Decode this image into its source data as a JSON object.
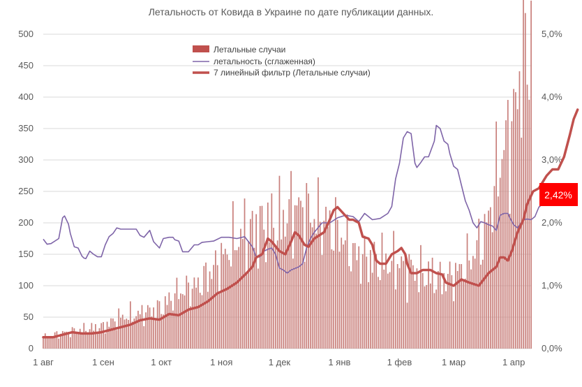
{
  "chart_data": {
    "type": "bar+line",
    "title": "Летальность от Ковида в Украине по дате публикации данных.",
    "xlabel": "",
    "ylabel": "",
    "grid": true,
    "legend_position": "top-center",
    "x_ticks": [
      {
        "label": "1 авг",
        "day": 0
      },
      {
        "label": "1 сен",
        "day": 31
      },
      {
        "label": "1 окт",
        "day": 61
      },
      {
        "label": "1 ноя",
        "day": 92
      },
      {
        "label": "1 дек",
        "day": 122
      },
      {
        "label": "1 янв",
        "day": 153
      },
      {
        "label": "1 фев",
        "day": 184
      },
      {
        "label": "1 мар",
        "day": 212
      },
      {
        "label": "1 апр",
        "day": 243
      }
    ],
    "y_left": {
      "min": 0,
      "max": 500,
      "ticks": [
        "0",
        "50",
        "100",
        "150",
        "200",
        "250",
        "300",
        "350",
        "400",
        "450",
        "500"
      ]
    },
    "y_right": {
      "min": 0,
      "max": 5.0,
      "ticks": [
        "0,0%",
        "1,0%",
        "2,0%",
        "3,0%",
        "4,0%",
        "5,0%"
      ]
    },
    "end_label": "2,42%",
    "colors": {
      "bars": "#c9807c",
      "bars_legend": "#c0504d",
      "smoothed_rate": "#7e64a8",
      "ma7": "#c0504d",
      "end_badge": "#ff0000",
      "grid": "#d9d9d9"
    },
    "series": [
      {
        "name": "Летальные случаи",
        "type": "bar",
        "axis": "left",
        "anchors": [
          [
            0,
            18
          ],
          [
            10,
            25
          ],
          [
            20,
            30
          ],
          [
            31,
            35
          ],
          [
            40,
            50
          ],
          [
            50,
            55
          ],
          [
            61,
            65
          ],
          [
            70,
            90
          ],
          [
            80,
            100
          ],
          [
            92,
            140
          ],
          [
            100,
            175
          ],
          [
            110,
            190
          ],
          [
            122,
            200
          ],
          [
            130,
            225
          ],
          [
            140,
            210
          ],
          [
            153,
            185
          ],
          [
            160,
            150
          ],
          [
            170,
            140
          ],
          [
            184,
            135
          ],
          [
            195,
            120
          ],
          [
            205,
            110
          ],
          [
            212,
            115
          ],
          [
            220,
            140
          ],
          [
            228,
            180
          ],
          [
            236,
            300
          ],
          [
            243,
            360
          ],
          [
            246,
            430
          ],
          [
            247,
            480
          ]
        ]
      },
      {
        "name": "летальность (сглаженная)",
        "type": "line",
        "axis": "right",
        "points": [
          [
            0,
            1.74
          ],
          [
            2,
            1.66
          ],
          [
            4,
            1.67
          ],
          [
            8,
            1.75
          ],
          [
            10,
            2.08
          ],
          [
            11,
            2.11
          ],
          [
            13,
            1.98
          ],
          [
            14,
            1.83
          ],
          [
            16,
            1.62
          ],
          [
            18,
            1.6
          ],
          [
            20,
            1.47
          ],
          [
            21,
            1.44
          ],
          [
            22,
            1.43
          ],
          [
            24,
            1.55
          ],
          [
            26,
            1.5
          ],
          [
            28,
            1.46
          ],
          [
            30,
            1.46
          ],
          [
            32,
            1.65
          ],
          [
            34,
            1.78
          ],
          [
            36,
            1.83
          ],
          [
            38,
            1.92
          ],
          [
            40,
            1.9
          ],
          [
            43,
            1.9
          ],
          [
            46,
            1.9
          ],
          [
            48,
            1.9
          ],
          [
            50,
            1.8
          ],
          [
            52,
            1.77
          ],
          [
            55,
            1.88
          ],
          [
            57,
            1.7
          ],
          [
            60,
            1.6
          ],
          [
            62,
            1.75
          ],
          [
            65,
            1.77
          ],
          [
            67,
            1.77
          ],
          [
            68,
            1.73
          ],
          [
            70,
            1.71
          ],
          [
            72,
            1.54
          ],
          [
            75,
            1.54
          ],
          [
            78,
            1.65
          ],
          [
            80,
            1.65
          ],
          [
            82,
            1.69
          ],
          [
            85,
            1.7
          ],
          [
            88,
            1.71
          ],
          [
            92,
            1.77
          ],
          [
            96,
            1.77
          ],
          [
            100,
            1.75
          ],
          [
            104,
            1.78
          ],
          [
            106,
            1.7
          ],
          [
            108,
            1.62
          ],
          [
            110,
            1.45
          ],
          [
            112,
            1.46
          ],
          [
            114,
            1.55
          ],
          [
            116,
            1.58
          ],
          [
            118,
            1.6
          ],
          [
            120,
            1.5
          ],
          [
            122,
            1.28
          ],
          [
            124,
            1.25
          ],
          [
            126,
            1.2
          ],
          [
            128,
            1.25
          ],
          [
            132,
            1.3
          ],
          [
            134,
            1.35
          ],
          [
            136,
            1.6
          ],
          [
            138,
            1.75
          ],
          [
            140,
            1.85
          ],
          [
            144,
            2.0
          ],
          [
            148,
            2.0
          ],
          [
            152,
            2.08
          ],
          [
            156,
            2.12
          ],
          [
            160,
            2.1
          ],
          [
            163,
            2.02
          ],
          [
            166,
            2.15
          ],
          [
            170,
            2.05
          ],
          [
            174,
            2.07
          ],
          [
            178,
            2.15
          ],
          [
            180,
            2.26
          ],
          [
            182,
            2.7
          ],
          [
            184,
            2.95
          ],
          [
            186,
            3.35
          ],
          [
            188,
            3.45
          ],
          [
            190,
            3.42
          ],
          [
            192,
            2.95
          ],
          [
            193,
            2.88
          ],
          [
            195,
            2.96
          ],
          [
            197,
            3.05
          ],
          [
            199,
            3.05
          ],
          [
            202,
            3.3
          ],
          [
            203,
            3.55
          ],
          [
            205,
            3.5
          ],
          [
            207,
            3.3
          ],
          [
            209,
            3.25
          ],
          [
            210,
            3.1
          ],
          [
            212,
            2.9
          ],
          [
            214,
            2.85
          ],
          [
            216,
            2.6
          ],
          [
            218,
            2.35
          ],
          [
            220,
            2.2
          ],
          [
            222,
            2.0
          ],
          [
            224,
            1.92
          ],
          [
            226,
            2.02
          ],
          [
            228,
            2.0
          ],
          [
            230,
            1.97
          ],
          [
            232,
            1.95
          ],
          [
            234,
            1.88
          ],
          [
            236,
            2.12
          ],
          [
            238,
            2.15
          ],
          [
            240,
            2.15
          ],
          [
            241,
            2.08
          ],
          [
            243,
            1.97
          ],
          [
            245,
            1.92
          ],
          [
            248,
            2.05
          ],
          [
            250,
            2.06
          ],
          [
            252,
            2.05
          ],
          [
            254,
            2.1
          ],
          [
            256,
            2.25
          ],
          [
            258,
            2.3
          ],
          [
            260,
            2.35
          ],
          [
            262,
            2.4
          ],
          [
            264,
            2.44
          ],
          [
            266,
            2.45
          ],
          [
            268,
            2.42
          ]
        ]
      },
      {
        "name": "7 линейный фильтр (Летальные случаи)",
        "type": "line",
        "axis": "left",
        "points": [
          [
            0,
            18
          ],
          [
            5,
            18
          ],
          [
            10,
            22
          ],
          [
            15,
            26
          ],
          [
            20,
            24
          ],
          [
            25,
            24
          ],
          [
            30,
            26
          ],
          [
            35,
            30
          ],
          [
            40,
            34
          ],
          [
            45,
            38
          ],
          [
            50,
            45
          ],
          [
            55,
            48
          ],
          [
            60,
            46
          ],
          [
            65,
            55
          ],
          [
            70,
            53
          ],
          [
            75,
            62
          ],
          [
            80,
            66
          ],
          [
            85,
            75
          ],
          [
            90,
            88
          ],
          [
            95,
            95
          ],
          [
            100,
            105
          ],
          [
            105,
            120
          ],
          [
            108,
            130
          ],
          [
            110,
            145
          ],
          [
            113,
            150
          ],
          [
            116,
            175
          ],
          [
            118,
            170
          ],
          [
            122,
            155
          ],
          [
            125,
            150
          ],
          [
            128,
            170
          ],
          [
            130,
            185
          ],
          [
            132,
            180
          ],
          [
            135,
            165
          ],
          [
            137,
            162
          ],
          [
            140,
            175
          ],
          [
            145,
            185
          ],
          [
            148,
            205
          ],
          [
            150,
            220
          ],
          [
            152,
            225
          ],
          [
            155,
            215
          ],
          [
            158,
            205
          ],
          [
            160,
            205
          ],
          [
            163,
            200
          ],
          [
            165,
            178
          ],
          [
            168,
            175
          ],
          [
            170,
            165
          ],
          [
            172,
            140
          ],
          [
            174,
            135
          ],
          [
            177,
            135
          ],
          [
            180,
            150
          ],
          [
            183,
            155
          ],
          [
            185,
            160
          ],
          [
            187,
            150
          ],
          [
            188,
            135
          ],
          [
            190,
            120
          ],
          [
            193,
            120
          ],
          [
            196,
            125
          ],
          [
            200,
            125
          ],
          [
            203,
            120
          ],
          [
            206,
            118
          ],
          [
            208,
            105
          ],
          [
            212,
            100
          ],
          [
            216,
            110
          ],
          [
            220,
            105
          ],
          [
            225,
            100
          ],
          [
            230,
            120
          ],
          [
            234,
            130
          ],
          [
            236,
            145
          ],
          [
            238,
            145
          ],
          [
            240,
            140
          ],
          [
            242,
            155
          ],
          [
            245,
            185
          ],
          [
            248,
            205
          ],
          [
            250,
            230
          ],
          [
            253,
            250
          ],
          [
            256,
            255
          ],
          [
            260,
            275
          ],
          [
            263,
            285
          ],
          [
            266,
            285
          ],
          [
            269,
            305
          ],
          [
            272,
            340
          ],
          [
            274,
            365
          ],
          [
            276,
            380
          ]
        ]
      }
    ]
  }
}
